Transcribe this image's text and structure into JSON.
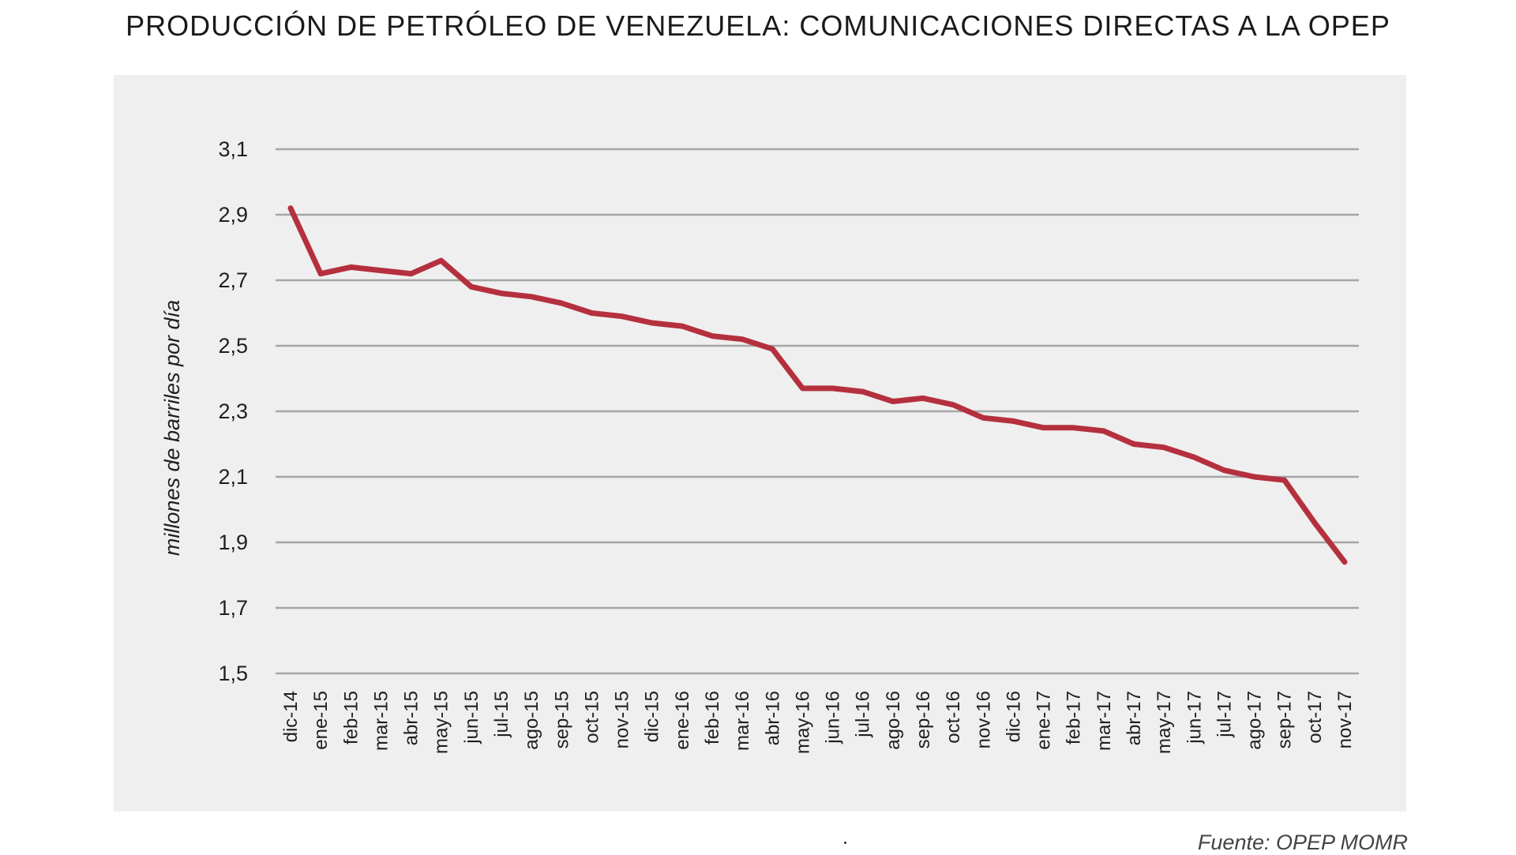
{
  "chart_data": {
    "type": "line",
    "title": "PRODUCCIÓN DE PETRÓLEO DE VENEZUELA: COMUNICACIONES DIRECTAS A LA OPEP",
    "xlabel": "",
    "ylabel": "millones de barriles por día",
    "ylim": [
      1.5,
      3.1
    ],
    "yticks": [
      "3,1",
      "2,9",
      "2,7",
      "2,5",
      "2,3",
      "2,1",
      "1,9",
      "1,7",
      "1,5"
    ],
    "ytick_values": [
      3.1,
      2.9,
      2.7,
      2.5,
      2.3,
      2.1,
      1.9,
      1.7,
      1.5
    ],
    "grid": true,
    "legend": "none",
    "categories": [
      "dic-14",
      "ene-15",
      "feb-15",
      "mar-15",
      "abr-15",
      "may-15",
      "jun-15",
      "jul-15",
      "ago-15",
      "sep-15",
      "oct-15",
      "nov-15",
      "dic-15",
      "ene-16",
      "feb-16",
      "mar-16",
      "abr-16",
      "may-16",
      "jun-16",
      "jul-16",
      "ago-16",
      "sep-16",
      "oct-16",
      "nov-16",
      "dic-16",
      "ene-17",
      "feb-17",
      "mar-17",
      "abr-17",
      "may-17",
      "jun-17",
      "jul-17",
      "ago-17",
      "sep-17",
      "oct-17",
      "nov-17"
    ],
    "series": [
      {
        "color": "#b5303e",
        "values": [
          2.92,
          2.72,
          2.74,
          2.73,
          2.72,
          2.76,
          2.68,
          2.66,
          2.65,
          2.63,
          2.6,
          2.59,
          2.57,
          2.56,
          2.53,
          2.52,
          2.49,
          2.37,
          2.37,
          2.36,
          2.33,
          2.34,
          2.32,
          2.28,
          2.27,
          2.25,
          2.25,
          2.24,
          2.2,
          2.19,
          2.16,
          2.12,
          2.1,
          2.09,
          1.96,
          1.84
        ]
      }
    ],
    "source": "Fuente: OPEP MOMR"
  }
}
